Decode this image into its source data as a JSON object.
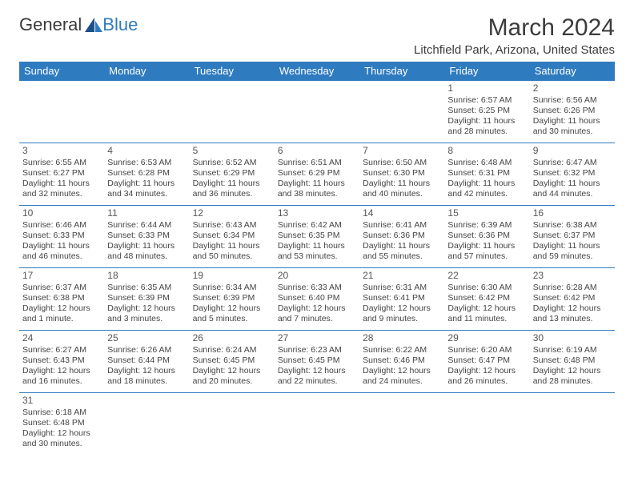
{
  "logo": {
    "text1": "General",
    "text2": "Blue"
  },
  "title": "March 2024",
  "location": "Litchfield Park, Arizona, United States",
  "colors": {
    "header_bg": "#2f7bbf",
    "header_text": "#ffffff",
    "cell_border": "#2f7bbf",
    "body_text": "#444444",
    "title_text": "#3b3b3b",
    "background": "#ffffff"
  },
  "dayHeaders": [
    "Sunday",
    "Monday",
    "Tuesday",
    "Wednesday",
    "Thursday",
    "Friday",
    "Saturday"
  ],
  "weeks": [
    [
      null,
      null,
      null,
      null,
      null,
      {
        "n": "1",
        "sr": "Sunrise: 6:57 AM",
        "ss": "Sunset: 6:25 PM",
        "dl": "Daylight: 11 hours and 28 minutes."
      },
      {
        "n": "2",
        "sr": "Sunrise: 6:56 AM",
        "ss": "Sunset: 6:26 PM",
        "dl": "Daylight: 11 hours and 30 minutes."
      }
    ],
    [
      {
        "n": "3",
        "sr": "Sunrise: 6:55 AM",
        "ss": "Sunset: 6:27 PM",
        "dl": "Daylight: 11 hours and 32 minutes."
      },
      {
        "n": "4",
        "sr": "Sunrise: 6:53 AM",
        "ss": "Sunset: 6:28 PM",
        "dl": "Daylight: 11 hours and 34 minutes."
      },
      {
        "n": "5",
        "sr": "Sunrise: 6:52 AM",
        "ss": "Sunset: 6:29 PM",
        "dl": "Daylight: 11 hours and 36 minutes."
      },
      {
        "n": "6",
        "sr": "Sunrise: 6:51 AM",
        "ss": "Sunset: 6:29 PM",
        "dl": "Daylight: 11 hours and 38 minutes."
      },
      {
        "n": "7",
        "sr": "Sunrise: 6:50 AM",
        "ss": "Sunset: 6:30 PM",
        "dl": "Daylight: 11 hours and 40 minutes."
      },
      {
        "n": "8",
        "sr": "Sunrise: 6:48 AM",
        "ss": "Sunset: 6:31 PM",
        "dl": "Daylight: 11 hours and 42 minutes."
      },
      {
        "n": "9",
        "sr": "Sunrise: 6:47 AM",
        "ss": "Sunset: 6:32 PM",
        "dl": "Daylight: 11 hours and 44 minutes."
      }
    ],
    [
      {
        "n": "10",
        "sr": "Sunrise: 6:46 AM",
        "ss": "Sunset: 6:33 PM",
        "dl": "Daylight: 11 hours and 46 minutes."
      },
      {
        "n": "11",
        "sr": "Sunrise: 6:44 AM",
        "ss": "Sunset: 6:33 PM",
        "dl": "Daylight: 11 hours and 48 minutes."
      },
      {
        "n": "12",
        "sr": "Sunrise: 6:43 AM",
        "ss": "Sunset: 6:34 PM",
        "dl": "Daylight: 11 hours and 50 minutes."
      },
      {
        "n": "13",
        "sr": "Sunrise: 6:42 AM",
        "ss": "Sunset: 6:35 PM",
        "dl": "Daylight: 11 hours and 53 minutes."
      },
      {
        "n": "14",
        "sr": "Sunrise: 6:41 AM",
        "ss": "Sunset: 6:36 PM",
        "dl": "Daylight: 11 hours and 55 minutes."
      },
      {
        "n": "15",
        "sr": "Sunrise: 6:39 AM",
        "ss": "Sunset: 6:36 PM",
        "dl": "Daylight: 11 hours and 57 minutes."
      },
      {
        "n": "16",
        "sr": "Sunrise: 6:38 AM",
        "ss": "Sunset: 6:37 PM",
        "dl": "Daylight: 11 hours and 59 minutes."
      }
    ],
    [
      {
        "n": "17",
        "sr": "Sunrise: 6:37 AM",
        "ss": "Sunset: 6:38 PM",
        "dl": "Daylight: 12 hours and 1 minute."
      },
      {
        "n": "18",
        "sr": "Sunrise: 6:35 AM",
        "ss": "Sunset: 6:39 PM",
        "dl": "Daylight: 12 hours and 3 minutes."
      },
      {
        "n": "19",
        "sr": "Sunrise: 6:34 AM",
        "ss": "Sunset: 6:39 PM",
        "dl": "Daylight: 12 hours and 5 minutes."
      },
      {
        "n": "20",
        "sr": "Sunrise: 6:33 AM",
        "ss": "Sunset: 6:40 PM",
        "dl": "Daylight: 12 hours and 7 minutes."
      },
      {
        "n": "21",
        "sr": "Sunrise: 6:31 AM",
        "ss": "Sunset: 6:41 PM",
        "dl": "Daylight: 12 hours and 9 minutes."
      },
      {
        "n": "22",
        "sr": "Sunrise: 6:30 AM",
        "ss": "Sunset: 6:42 PM",
        "dl": "Daylight: 12 hours and 11 minutes."
      },
      {
        "n": "23",
        "sr": "Sunrise: 6:28 AM",
        "ss": "Sunset: 6:42 PM",
        "dl": "Daylight: 12 hours and 13 minutes."
      }
    ],
    [
      {
        "n": "24",
        "sr": "Sunrise: 6:27 AM",
        "ss": "Sunset: 6:43 PM",
        "dl": "Daylight: 12 hours and 16 minutes."
      },
      {
        "n": "25",
        "sr": "Sunrise: 6:26 AM",
        "ss": "Sunset: 6:44 PM",
        "dl": "Daylight: 12 hours and 18 minutes."
      },
      {
        "n": "26",
        "sr": "Sunrise: 6:24 AM",
        "ss": "Sunset: 6:45 PM",
        "dl": "Daylight: 12 hours and 20 minutes."
      },
      {
        "n": "27",
        "sr": "Sunrise: 6:23 AM",
        "ss": "Sunset: 6:45 PM",
        "dl": "Daylight: 12 hours and 22 minutes."
      },
      {
        "n": "28",
        "sr": "Sunrise: 6:22 AM",
        "ss": "Sunset: 6:46 PM",
        "dl": "Daylight: 12 hours and 24 minutes."
      },
      {
        "n": "29",
        "sr": "Sunrise: 6:20 AM",
        "ss": "Sunset: 6:47 PM",
        "dl": "Daylight: 12 hours and 26 minutes."
      },
      {
        "n": "30",
        "sr": "Sunrise: 6:19 AM",
        "ss": "Sunset: 6:48 PM",
        "dl": "Daylight: 12 hours and 28 minutes."
      }
    ],
    [
      {
        "n": "31",
        "sr": "Sunrise: 6:18 AM",
        "ss": "Sunset: 6:48 PM",
        "dl": "Daylight: 12 hours and 30 minutes."
      },
      null,
      null,
      null,
      null,
      null,
      null
    ]
  ]
}
